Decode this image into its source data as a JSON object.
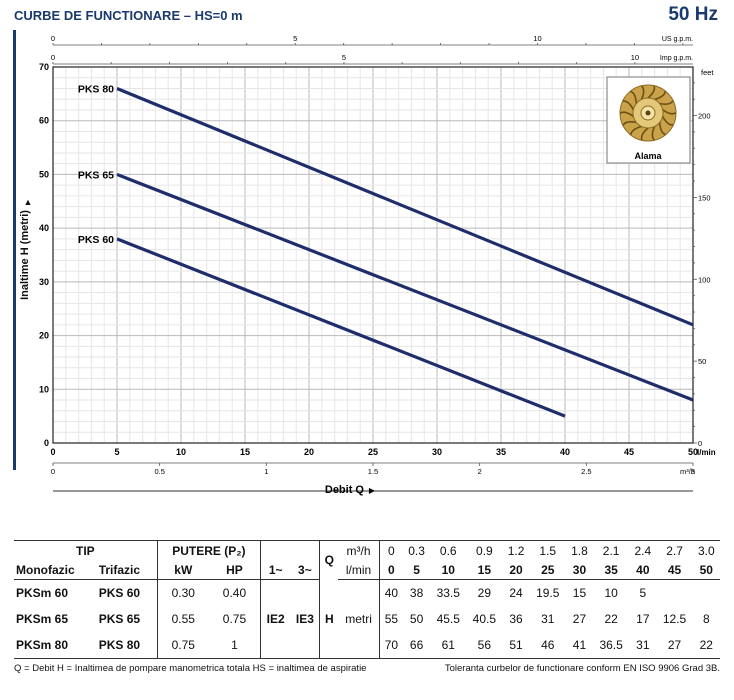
{
  "header": {
    "title": "CURBE DE FUNCTIONARE  –  HS=0 m",
    "frequency": "50 Hz"
  },
  "chart_data": {
    "type": "line",
    "ylabel": "Inaltime H  (metri)",
    "xlabel": "Debit  Q",
    "ylim": [
      0,
      70
    ],
    "xlim_lmin": [
      0,
      50
    ],
    "y_ticks": [
      "0",
      "10",
      "20",
      "30",
      "40",
      "50",
      "60",
      "70"
    ],
    "x_ticks_lmin": [
      "0",
      "5",
      "10",
      "15",
      "20",
      "25",
      "30",
      "35",
      "40",
      "45",
      "50"
    ],
    "x_unit_lmin": "l/min",
    "x_ticks_m3h": [
      "0",
      "0.5",
      "1",
      "1.5",
      "2",
      "2.5",
      "3"
    ],
    "x_unit_m3h": "m³/h",
    "top_ticks_usgpm": [
      "0",
      "5",
      "10"
    ],
    "top_unit_usgpm": "US g.p.m.",
    "top_ticks_impgpm": [
      "0",
      "5",
      "10"
    ],
    "top_unit_impgpm": "Imp g.p.m.",
    "right_ticks_feet": [
      "0",
      "50",
      "100",
      "150",
      "200"
    ],
    "right_unit": "feet",
    "series": [
      {
        "name": "PKS 80",
        "x": [
          5,
          50
        ],
        "y": [
          66,
          22
        ]
      },
      {
        "name": "PKS 65",
        "x": [
          5,
          50
        ],
        "y": [
          50,
          8
        ]
      },
      {
        "name": "PKS 60",
        "x": [
          5,
          40
        ],
        "y": [
          38,
          5
        ]
      }
    ],
    "inset_label": "Alama",
    "line_color": "#1f2d6b"
  },
  "table": {
    "tip": "TIP",
    "putere": "PUTERE (P₂)",
    "q": "Q",
    "m3h_label": "m³/h",
    "lmin_label": "l/min",
    "col_mono": "Monofazic",
    "col_tri": "Trifazic",
    "col_kw": "kW",
    "col_hp": "HP",
    "col_1ph": "1~",
    "col_3ph": "3~",
    "ie2": "IE2",
    "ie3": "IE3",
    "h_label": "H",
    "metri": "metri",
    "q_m3h": [
      "0",
      "0.3",
      "0.6",
      "0.9",
      "1.2",
      "1.5",
      "1.8",
      "2.1",
      "2.4",
      "2.7",
      "3.0"
    ],
    "q_lmin": [
      "0",
      "5",
      "10",
      "15",
      "20",
      "25",
      "30",
      "35",
      "40",
      "45",
      "50"
    ],
    "rows": [
      {
        "mono": "PKSm 60",
        "tri": "PKS 60",
        "kw": "0.30",
        "hp": "0.40",
        "h": [
          "40",
          "38",
          "33.5",
          "29",
          "24",
          "19.5",
          "15",
          "10",
          "5",
          "",
          ""
        ]
      },
      {
        "mono": "PKSm 65",
        "tri": "PKS 65",
        "kw": "0.55",
        "hp": "0.75",
        "h": [
          "55",
          "50",
          "45.5",
          "40.5",
          "36",
          "31",
          "27",
          "22",
          "17",
          "12.5",
          "8"
        ]
      },
      {
        "mono": "PKSm 80",
        "tri": "PKS 80",
        "kw": "0.75",
        "hp": "1",
        "h": [
          "70",
          "66",
          "61",
          "56",
          "51",
          "46",
          "41",
          "36.5",
          "31",
          "27",
          "22"
        ]
      }
    ]
  },
  "footer": {
    "left": "Q = Debit    H = Inaltimea de pompare manometrica totala    HS = inaltimea de aspiratie",
    "right": "Toleranta curbelor de functionare conform EN ISO 9906 Grad 3B."
  }
}
